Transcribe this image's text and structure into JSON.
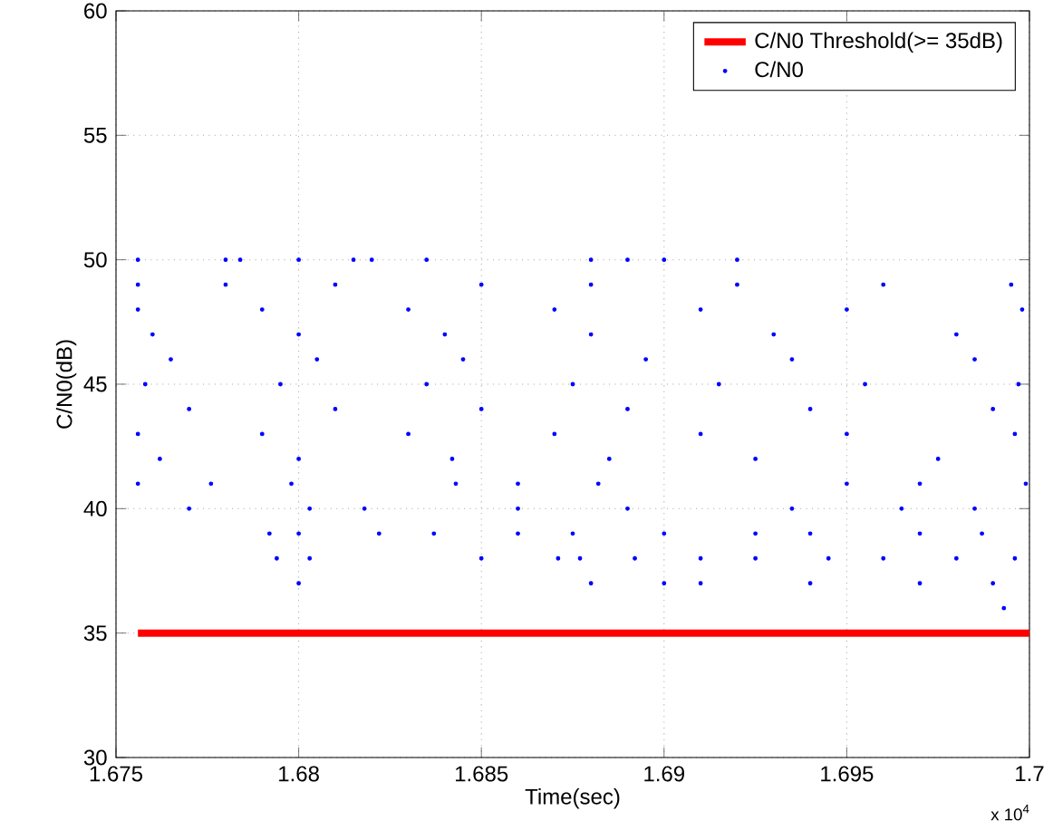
{
  "chart_data": {
    "type": "scatter",
    "xlabel": "Time(sec)",
    "ylabel": "C/N0(dB)",
    "xlim": [
      1.675,
      1.7
    ],
    "ylim": [
      30,
      60
    ],
    "xticks": [
      1.675,
      1.68,
      1.685,
      1.69,
      1.695,
      1.7
    ],
    "yticks": [
      30,
      35,
      40,
      45,
      50,
      55,
      60
    ],
    "grid": true,
    "legend": "top right",
    "annotations": [
      "x 10$^{4}$"
    ],
    "series": [
      {
        "name": "C/N0 Threshold(>= 35dB)",
        "type": "line",
        "color": "#ff0000",
        "marker": "none",
        "x": [
          1.6756,
          1.7
        ],
        "values": [
          35,
          35
        ]
      },
      {
        "name": "C/N0",
        "color": "#0000ff",
        "marker": "circle",
        "x": [
          1.6756,
          1.678,
          1.6784,
          1.68,
          1.6815,
          1.682,
          1.6835,
          1.688,
          1.689,
          1.69,
          1.692,
          1.6756,
          1.678,
          1.681,
          1.685,
          1.688,
          1.692,
          1.696,
          1.6995,
          1.6756,
          1.679,
          1.683,
          1.687,
          1.691,
          1.695,
          1.6998,
          1.676,
          1.68,
          1.684,
          1.688,
          1.693,
          1.698,
          1.6765,
          1.6805,
          1.6845,
          1.6895,
          1.6935,
          1.6985,
          1.6758,
          1.6795,
          1.6835,
          1.6875,
          1.6915,
          1.6955,
          1.6997,
          1.677,
          1.681,
          1.685,
          1.689,
          1.694,
          1.699,
          1.6756,
          1.679,
          1.683,
          1.687,
          1.691,
          1.695,
          1.6996,
          1.6762,
          1.68,
          1.6842,
          1.6885,
          1.6925,
          1.6975,
          1.6756,
          1.6776,
          1.6798,
          1.6843,
          1.686,
          1.6882,
          1.695,
          1.697,
          1.6999,
          1.677,
          1.6803,
          1.6818,
          1.686,
          1.689,
          1.6935,
          1.6965,
          1.6985,
          1.6792,
          1.68,
          1.6822,
          1.6837,
          1.686,
          1.6875,
          1.69,
          1.6925,
          1.694,
          1.697,
          1.6987,
          1.6794,
          1.6803,
          1.685,
          1.6871,
          1.6877,
          1.6892,
          1.691,
          1.6925,
          1.6945,
          1.696,
          1.698,
          1.6996,
          1.68,
          1.688,
          1.69,
          1.691,
          1.694,
          1.697,
          1.699,
          1.6993
        ],
        "values": [
          50,
          50,
          50,
          50,
          50,
          50,
          50,
          50,
          50,
          50,
          50,
          49,
          49,
          49,
          49,
          49,
          49,
          49,
          49,
          48,
          48,
          48,
          48,
          48,
          48,
          48,
          47,
          47,
          47,
          47,
          47,
          47,
          46,
          46,
          46,
          46,
          46,
          46,
          45,
          45,
          45,
          45,
          45,
          45,
          45,
          44,
          44,
          44,
          44,
          44,
          44,
          43,
          43,
          43,
          43,
          43,
          43,
          43,
          42,
          42,
          42,
          42,
          42,
          42,
          41,
          41,
          41,
          41,
          41,
          41,
          41,
          41,
          41,
          40,
          40,
          40,
          40,
          40,
          40,
          40,
          40,
          39,
          39,
          39,
          39,
          39,
          39,
          39,
          39,
          39,
          39,
          39,
          38,
          38,
          38,
          38,
          38,
          38,
          38,
          38,
          38,
          38,
          38,
          38,
          37,
          37,
          37,
          37,
          37,
          37,
          37,
          36
        ]
      }
    ]
  }
}
